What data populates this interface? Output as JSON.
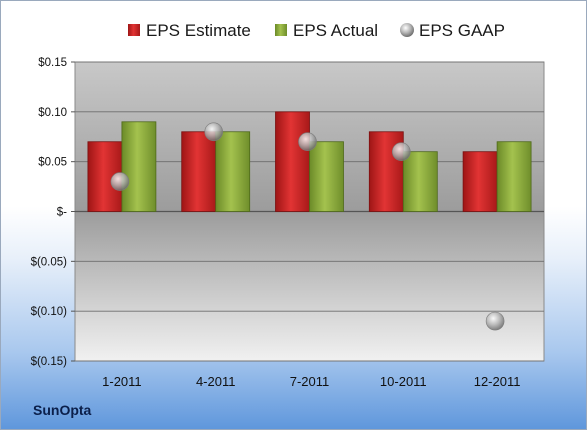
{
  "company": "SunOpta",
  "chart_data": {
    "type": "bar",
    "categories": [
      "1-2011",
      "4-2011",
      "7-2011",
      "10-2011",
      "12-2011"
    ],
    "series": [
      {
        "name": "EPS Estimate",
        "kind": "bar",
        "color": "#d42a2a",
        "values": [
          0.07,
          0.08,
          0.1,
          0.08,
          0.06
        ]
      },
      {
        "name": "EPS Actual",
        "kind": "bar",
        "color": "#8fae3c",
        "values": [
          0.09,
          0.08,
          0.07,
          0.06,
          0.07
        ]
      },
      {
        "name": "EPS GAAP",
        "kind": "marker",
        "color": "#b9b9b9",
        "values": [
          0.03,
          0.08,
          0.07,
          0.06,
          -0.11
        ]
      }
    ],
    "yticks": [
      0.15,
      0.1,
      0.05,
      0,
      -0.05,
      -0.1,
      -0.15
    ],
    "ytick_labels": [
      "$0.15",
      "$0.10",
      "$0.05",
      "$-",
      "$(0.05)",
      "$(0.10)",
      "$(0.15)"
    ],
    "ylim": [
      -0.15,
      0.15
    ],
    "legend_position": "top",
    "grid": true
  }
}
